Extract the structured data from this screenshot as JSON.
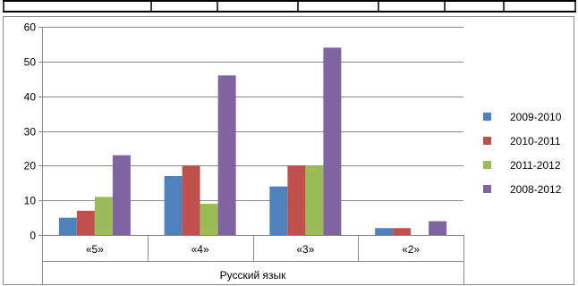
{
  "chart_data": {
    "type": "bar",
    "categories": [
      "«5»",
      "«4»",
      "«3»",
      "«2»"
    ],
    "group_label": "Русский язык",
    "series": [
      {
        "name": "2009-2010",
        "color": "#4f81bd",
        "values": [
          5,
          17,
          14,
          2
        ]
      },
      {
        "name": "2010-2011",
        "color": "#c0504d",
        "values": [
          7,
          20,
          20,
          2
        ]
      },
      {
        "name": "2011-2012",
        "color": "#9bbb59",
        "values": [
          11,
          9,
          20,
          0
        ]
      },
      {
        "name": "2008-2012",
        "color": "#8064a2",
        "values": [
          23,
          46,
          54,
          4
        ]
      }
    ],
    "ylim": [
      0,
      60
    ],
    "yticks": [
      0,
      10,
      20,
      30,
      40,
      50,
      60
    ],
    "grid": true,
    "legend_position": "right"
  }
}
